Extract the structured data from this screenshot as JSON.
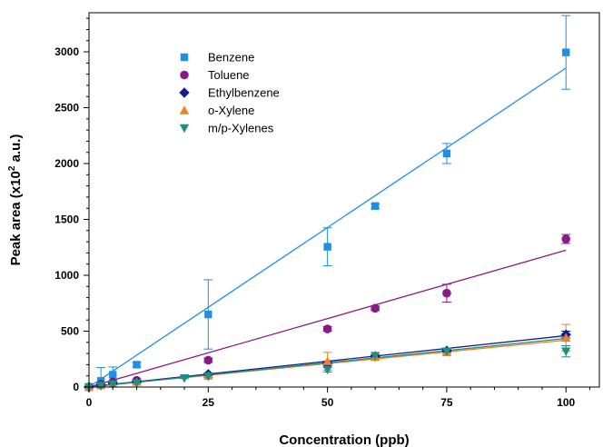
{
  "chart_data": {
    "type": "scatter",
    "xlabel": "Concentration (ppb)",
    "ylabel": "Peak area (x10",
    "ylabel_sup": "2",
    "ylabel_suffix": " a.u.)",
    "xlim": [
      0,
      107
    ],
    "ylim": [
      0,
      3350
    ],
    "xticks": [
      0,
      25,
      50,
      75,
      100
    ],
    "yticks": [
      0,
      500,
      1000,
      1500,
      2000,
      2500,
      3000
    ],
    "grid": false,
    "legend_position": "top-left",
    "series": [
      {
        "name": "Benzene",
        "marker": "square",
        "color": "#1f8fe6",
        "x": [
          0,
          2.5,
          5,
          10,
          25,
          50,
          60,
          75,
          100
        ],
        "y": [
          0,
          55,
          110,
          200,
          650,
          1255,
          1620,
          2090,
          2995
        ],
        "err": [
          0,
          120,
          70,
          20,
          310,
          170,
          20,
          90,
          330
        ],
        "fit": [
          [
            0,
            -50
          ],
          [
            100,
            2855
          ]
        ]
      },
      {
        "name": "Toluene",
        "marker": "circle",
        "color": "#8b1a89",
        "x": [
          0,
          2.5,
          5,
          10,
          25,
          50,
          60,
          75,
          100
        ],
        "y": [
          0,
          25,
          45,
          60,
          240,
          520,
          705,
          840,
          1325
        ],
        "err": [
          0,
          10,
          10,
          10,
          20,
          20,
          20,
          80,
          40
        ],
        "fit": [
          [
            0,
            -15
          ],
          [
            100,
            1225
          ]
        ]
      },
      {
        "name": "Ethylbenzene",
        "marker": "diamond",
        "color": "#141f8c",
        "x": [
          0,
          2.5,
          5,
          10,
          25,
          50,
          60,
          75,
          100
        ],
        "y": [
          0,
          18,
          35,
          50,
          115,
          210,
          275,
          325,
          470
        ],
        "err": [
          0,
          5,
          5,
          5,
          10,
          20,
          10,
          10,
          30
        ],
        "fit": [
          [
            0,
            2
          ],
          [
            100,
            460
          ]
        ]
      },
      {
        "name": "o-Xylene",
        "marker": "triangle-up",
        "color": "#f08020",
        "x": [
          0,
          2.5,
          5,
          10,
          25,
          50,
          60,
          75,
          100
        ],
        "y": [
          0,
          15,
          30,
          45,
          100,
          230,
          270,
          310,
          440
        ],
        "err": [
          0,
          5,
          5,
          5,
          10,
          80,
          10,
          15,
          120
        ],
        "fit": [
          [
            0,
            -5
          ],
          [
            100,
            420
          ]
        ]
      },
      {
        "name": "m/p-Xylenes",
        "marker": "triangle-down",
        "color": "#1d8f84",
        "x": [
          0,
          2.5,
          5,
          10,
          20,
          25,
          50,
          60,
          75,
          100
        ],
        "y": [
          0,
          12,
          25,
          35,
          80,
          95,
          155,
          280,
          320,
          320
        ],
        "err": [
          0,
          5,
          5,
          5,
          5,
          10,
          20,
          10,
          10,
          50
        ],
        "fit": [
          [
            0,
            -5
          ],
          [
            100,
            435
          ]
        ]
      }
    ]
  }
}
